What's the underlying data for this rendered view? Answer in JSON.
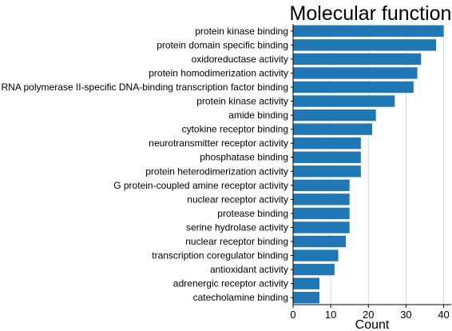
{
  "chart_data": {
    "type": "bar",
    "orientation": "horizontal",
    "title": "Molecular function",
    "xlabel": "Count",
    "ylabel": "",
    "xlim": [
      0,
      42
    ],
    "xticks": [
      "0",
      "10",
      "20",
      "30",
      "40"
    ],
    "grid": "vertical",
    "bar_color": "#1f77b4",
    "categories": [
      "protein kinase binding",
      "protein domain specific binding",
      "oxidoreductase activity",
      "protein homodimerization activity",
      "RNA polymerase II-specific DNA-binding transcription factor binding",
      "protein kinase activity",
      "amide binding",
      "cytokine receptor binding",
      "neurotransmitter receptor activity",
      "phosphatase binding",
      "protein heterodimerization activity",
      "G protein-coupled amine receptor activity",
      "nuclear receptor activity",
      "protease binding",
      "serine hydrolase activity",
      "nuclear receptor binding",
      "transcription coregulator binding",
      "antioxidant activity",
      "adrenergic receptor activity",
      "catecholamine binding"
    ],
    "values": [
      40,
      38,
      34,
      33,
      32,
      27,
      22,
      21,
      18,
      18,
      18,
      15,
      15,
      15,
      15,
      14,
      12,
      11,
      7,
      7
    ]
  }
}
